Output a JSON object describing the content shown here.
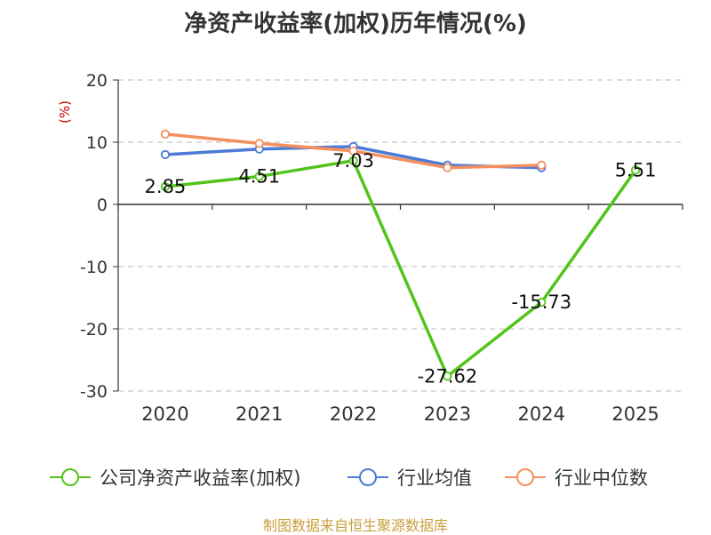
{
  "title": "净资产收益率(加权)历年情况(%)",
  "footer": "制图数据来自恒生聚源数据库",
  "chart_data": {
    "type": "line",
    "categories": [
      "2020",
      "2021",
      "2022",
      "2023",
      "2024",
      "2025"
    ],
    "ylabel": "(%)",
    "ylim": [
      -30,
      20
    ],
    "yticks": [
      20,
      10,
      0,
      -10,
      -20,
      -30
    ],
    "grid": true,
    "legend_position": "bottom",
    "series": [
      {
        "name": "公司净资产收益率(加权)",
        "color": "#52c41a",
        "values": [
          2.85,
          4.51,
          7.03,
          -27.62,
          -15.73,
          5.51
        ],
        "labels": [
          "2.85",
          "4.51",
          "7.03",
          "-27.62",
          "-15.73",
          "5.51"
        ]
      },
      {
        "name": "行业均值",
        "color": "#4b7bd6",
        "values": [
          8.0,
          8.9,
          9.3,
          6.3,
          5.9,
          null
        ]
      },
      {
        "name": "行业中位数",
        "color": "#f5905e",
        "values": [
          11.3,
          9.8,
          8.6,
          5.9,
          6.3,
          null
        ]
      }
    ]
  }
}
